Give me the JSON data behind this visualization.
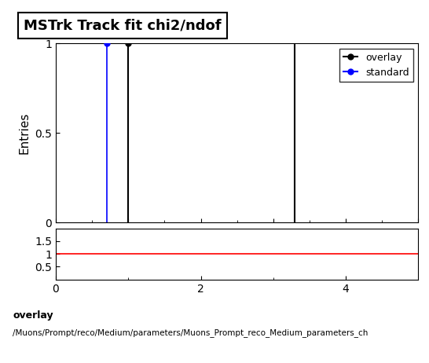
{
  "title": "MSTrk Track fit chi2/ndof",
  "ylabel": "Entries",
  "xlim": [
    0,
    5
  ],
  "ylim_main": [
    0,
    1.0
  ],
  "ylim_ratio": [
    0,
    2.0
  ],
  "ratio_yticks": [
    0.5,
    1.0,
    1.5
  ],
  "main_yticks": [
    0,
    0.5,
    1.0
  ],
  "overlay_color": "#000000",
  "standard_color": "#0000ff",
  "ratio_line_color": "#ff0000",
  "overlay_label": "overlay",
  "standard_label": "standard",
  "standard_x": 0.7,
  "overlay_x1": 1.0,
  "overlay_x2": 3.3,
  "footer_text1": "overlay",
  "footer_text2": "/Muons/Prompt/reco/Medium/parameters/Muons_Prompt_reco_Medium_parameters_ch",
  "background_color": "#ffffff",
  "title_fontsize": 13,
  "tick_labelsize": 10,
  "label_fontsize": 11,
  "ratio_xticks": [
    0,
    2,
    4
  ],
  "main_xtick_minor": [
    0,
    0.5,
    1.0,
    1.5,
    2.0,
    2.5,
    3.0,
    3.5,
    4.0,
    4.5,
    5.0
  ]
}
